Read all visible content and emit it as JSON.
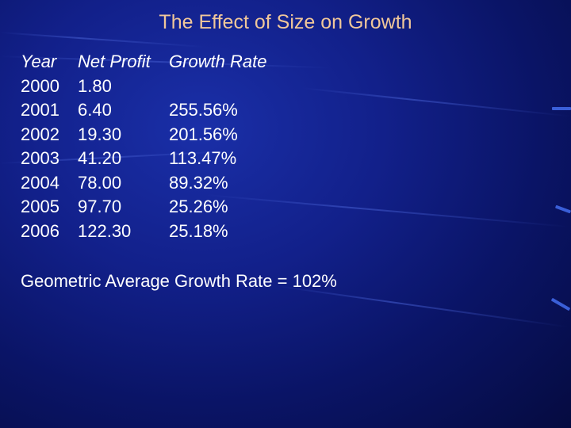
{
  "slide": {
    "title": "The Effect of Size on Growth",
    "headers": {
      "year": "Year",
      "net_profit": "Net Profit",
      "growth_rate": "Growth Rate"
    },
    "rows": [
      {
        "year": "2000",
        "net_profit": "1.80",
        "growth_rate": ""
      },
      {
        "year": "2001",
        "net_profit": "6.40",
        "growth_rate": "255.56%"
      },
      {
        "year": "2002",
        "net_profit": "19.30",
        "growth_rate": "201.56%"
      },
      {
        "year": "2003",
        "net_profit": "41.20",
        "growth_rate": "113.47%"
      },
      {
        "year": "2004",
        "net_profit": "78.00",
        "growth_rate": "89.32%"
      },
      {
        "year": "2005",
        "net_profit": "97.70",
        "growth_rate": "25.26%"
      },
      {
        "year": "2006",
        "net_profit": "122.30",
        "growth_rate": "25.18%"
      }
    ],
    "footer": "Geometric Average Growth Rate = 102%"
  },
  "colors": {
    "title": "#f0c79a",
    "text": "#ffffff",
    "background": "#12208a",
    "accent": "#3a5fd8"
  }
}
